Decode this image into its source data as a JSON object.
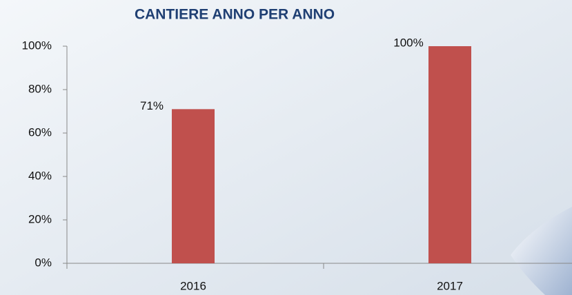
{
  "chart_data": {
    "type": "bar",
    "title": "CANTIERE ANNO PER ANNO",
    "categories": [
      "2016",
      "2017"
    ],
    "values": [
      71,
      100
    ],
    "value_labels": [
      "71%",
      "100%"
    ],
    "color": "#c0504d",
    "ylim": [
      0,
      100
    ],
    "yticks": [
      {
        "value": 0,
        "label": "0%"
      },
      {
        "value": 20,
        "label": "20%"
      },
      {
        "value": 40,
        "label": "40%"
      },
      {
        "value": 60,
        "label": "60%"
      },
      {
        "value": 80,
        "label": "80%"
      },
      {
        "value": 100,
        "label": "100%"
      }
    ],
    "grid": false
  }
}
